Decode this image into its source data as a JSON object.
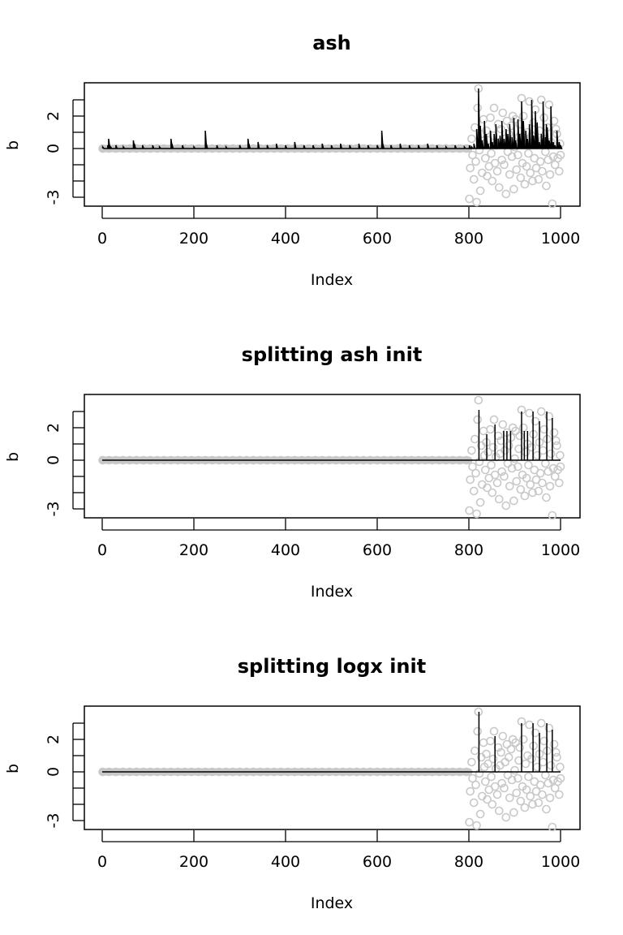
{
  "chart_data": [
    {
      "type": "scatter",
      "title": "ash",
      "xlabel": "Index",
      "ylabel": "b",
      "xlim": [
        0,
        1000
      ],
      "ylim": [
        -3.5,
        4
      ],
      "xticks": [
        0,
        200,
        400,
        600,
        800,
        1000
      ],
      "yticks": [
        -3,
        -2,
        -1,
        0,
        1,
        2,
        3
      ],
      "ytick_labels": [
        "-3",
        "",
        "",
        "0",
        "",
        "2",
        ""
      ],
      "series": [
        {
          "style": "points",
          "x": [
            1,
            15,
            30,
            45,
            60,
            75,
            90,
            105,
            120,
            135,
            150,
            165,
            180,
            195,
            210,
            225,
            240,
            255,
            270,
            285,
            300,
            315,
            330,
            345,
            360,
            375,
            390,
            405,
            420,
            435,
            450,
            465,
            480,
            495,
            510,
            525,
            540,
            555,
            570,
            585,
            600,
            615,
            630,
            645,
            660,
            675,
            690,
            705,
            720,
            735,
            750,
            765,
            780,
            795,
            801,
            803,
            806,
            808,
            811,
            813,
            815,
            817,
            819,
            821,
            823,
            825,
            827,
            829,
            832,
            834,
            836,
            838,
            840,
            842,
            844,
            847,
            849,
            851,
            853,
            855,
            857,
            859,
            862,
            864,
            866,
            868,
            870,
            872,
            874,
            877,
            879,
            881,
            883,
            885,
            887,
            889,
            892,
            894,
            896,
            898,
            900,
            902,
            904,
            907,
            909,
            911,
            913,
            915,
            917,
            919,
            922,
            924,
            926,
            928,
            930,
            932,
            934,
            937,
            939,
            941,
            943,
            945,
            947,
            949,
            952,
            954,
            956,
            958,
            960,
            962,
            964,
            967,
            969,
            971,
            973,
            975,
            977,
            979,
            982,
            984,
            986,
            988,
            990,
            992,
            994,
            997,
            999,
            1000
          ],
          "y": [
            0,
            0,
            0,
            0,
            0,
            0,
            0,
            0,
            0,
            0,
            0,
            0,
            0,
            0,
            0,
            0,
            0,
            0,
            0,
            0,
            0,
            0,
            0,
            0,
            0,
            0,
            0,
            0,
            0,
            0,
            0,
            0,
            0,
            0,
            0,
            0,
            0,
            0,
            0,
            0,
            0,
            0,
            0,
            0,
            0,
            0,
            0,
            0,
            0,
            0,
            0,
            0,
            0,
            0,
            -3.1,
            -1.2,
            0.6,
            -0.4,
            -1.9,
            1.3,
            -0.8,
            -3.3,
            2.5,
            3.7,
            -0.1,
            -2.6,
            0.9,
            -1.5,
            1.8,
            0.3,
            -0.6,
            1.1,
            -1.7,
            0.5,
            -1.1,
            1.9,
            -0.3,
            -2.0,
            0.8,
            2.5,
            -0.9,
            0.2,
            -1.4,
            1.5,
            -2.4,
            0.4,
            1.2,
            -0.7,
            2.2,
            -1.0,
            0.6,
            -2.8,
            1.7,
            -0.2,
            0.9,
            -1.6,
            1.4,
            -0.5,
            2.0,
            -2.5,
            0.1,
            1.8,
            -1.3,
            -0.4,
            0.7,
            1.5,
            -1.8,
            3.1,
            -0.9,
            2.0,
            -2.2,
            0.5,
            -1.1,
            1.0,
            -0.3,
            2.9,
            -1.5,
            0.8,
            -2.0,
            1.6,
            -0.6,
            2.4,
            -1.2,
            0.3,
            -1.9,
            1.1,
            -0.8,
            3.0,
            -1.4,
            0.6,
            1.9,
            -0.2,
            -2.3,
            1.3,
            -0.7,
            2.7,
            -1.6,
            0.4,
            -3.4,
            -0.5,
            1.7,
            -1.0,
            1.2,
            0.9,
            -0.6,
            -1.4,
            0.3,
            -0.4
          ]
        },
        {
          "style": "line",
          "x": [
            1,
            12,
            14,
            18,
            30,
            46,
            68,
            70,
            88,
            110,
            125,
            150,
            152,
            175,
            200,
            225,
            227,
            250,
            270,
            300,
            318,
            320,
            340,
            360,
            380,
            400,
            420,
            440,
            460,
            480,
            500,
            520,
            540,
            560,
            580,
            600,
            610,
            612,
            630,
            650,
            670,
            690,
            710,
            730,
            750,
            770,
            790,
            801,
            806,
            811,
            817,
            821,
            825,
            829,
            834,
            838,
            842,
            847,
            851,
            855,
            859,
            864,
            868,
            872,
            877,
            881,
            885,
            889,
            894,
            898,
            902,
            907,
            911,
            915,
            917,
            919,
            924,
            928,
            932,
            937,
            941,
            945,
            949,
            954,
            958,
            962,
            967,
            969,
            971,
            975,
            979,
            984,
            988,
            992,
            997,
            1000
          ],
          "y": [
            0.1,
            0.2,
            0.6,
            0.1,
            0.2,
            0.1,
            0.5,
            0.3,
            0.2,
            0.2,
            0.1,
            0.6,
            0.3,
            0.2,
            0.1,
            1.1,
            0.3,
            0.2,
            0.1,
            0.2,
            0.6,
            0.3,
            0.4,
            0.2,
            0.3,
            0.2,
            0.4,
            0.2,
            0.2,
            0.3,
            0.2,
            0.3,
            0.2,
            0.3,
            0.2,
            0.2,
            1.1,
            0.3,
            0.2,
            0.3,
            0.2,
            0.2,
            0.3,
            0.2,
            0.1,
            0.2,
            0.1,
            0.2,
            0.1,
            0.3,
            1.2,
            3.7,
            1.4,
            0.5,
            1.7,
            0.9,
            0.3,
            1.1,
            0.4,
            0.9,
            1.5,
            0.6,
            0.8,
            1.7,
            0.6,
            1.2,
            0.9,
            1.5,
            0.7,
            1.9,
            0.5,
            1.8,
            0.9,
            2.9,
            1.0,
            1.7,
            1.1,
            0.6,
            1.5,
            3.0,
            0.8,
            2.3,
            1.6,
            0.4,
            0.9,
            2.9,
            0.7,
            1.5,
            1.3,
            0.5,
            2.6,
            0.4,
            0.2,
            1.1,
            0.4,
            0.2
          ]
        }
      ]
    },
    {
      "type": "scatter",
      "title": "splitting ash init",
      "xlabel": "Index",
      "ylabel": "b",
      "xlim": [
        0,
        1000
      ],
      "ylim": [
        -3.5,
        4
      ],
      "xticks": [
        0,
        200,
        400,
        600,
        800,
        1000
      ],
      "yticks": [
        -3,
        -2,
        -1,
        0,
        1,
        2,
        3
      ],
      "ytick_labels": [
        "-3",
        "",
        "",
        "0",
        "",
        "2",
        ""
      ],
      "series": [
        {
          "style": "points",
          "same_as_panel": 0
        },
        {
          "style": "spikes",
          "x": [
            1,
            822,
            839,
            857,
            876,
            883,
            891,
            915,
            921,
            928,
            940,
            954,
            970,
            982
          ],
          "y": [
            0,
            3.1,
            1.6,
            2.2,
            1.8,
            1.8,
            1.8,
            3.0,
            1.8,
            1.8,
            3.0,
            2.4,
            3.0,
            2.6
          ]
        }
      ]
    },
    {
      "type": "scatter",
      "title": "splitting logx init",
      "xlabel": "Index",
      "ylabel": "b",
      "xlim": [
        0,
        1000
      ],
      "ylim": [
        -3.5,
        4
      ],
      "xticks": [
        0,
        200,
        400,
        600,
        800,
        1000
      ],
      "yticks": [
        -3,
        -2,
        -1,
        0,
        1,
        2,
        3
      ],
      "ytick_labels": [
        "-3",
        "",
        "",
        "0",
        "",
        "2",
        ""
      ],
      "series": [
        {
          "style": "points",
          "same_as_panel": 0
        },
        {
          "style": "spikes",
          "x": [
            1,
            822,
            857,
            915,
            940,
            954,
            970,
            982
          ],
          "y": [
            0,
            3.7,
            2.2,
            3.0,
            3.0,
            2.4,
            3.0,
            2.6
          ]
        }
      ]
    }
  ]
}
